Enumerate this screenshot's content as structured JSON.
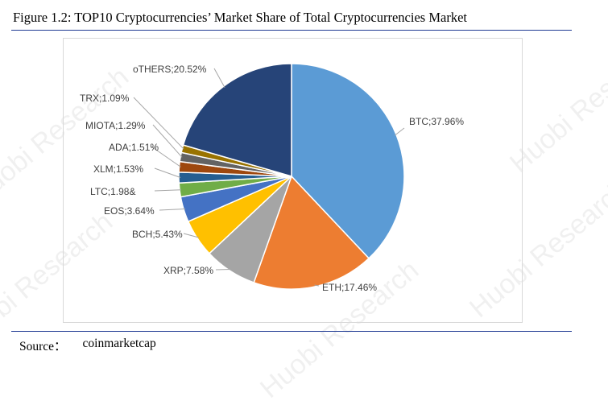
{
  "figure": {
    "title": "Figure 1.2: TOP10 Cryptocurrencies’ Market Share of Total Cryptocurrencies Market"
  },
  "watermark": {
    "text": "Huobi Research"
  },
  "source": {
    "label": "Source：",
    "value": "coinmarketcap"
  },
  "chart_data": {
    "type": "pie",
    "title": "",
    "start_angle_deg": 0,
    "direction": "clockwise",
    "slices": [
      {
        "name": "BTC",
        "value": 37.96,
        "label": "BTC;37.96%",
        "color": "#5b9bd5"
      },
      {
        "name": "ETH",
        "value": 17.46,
        "label": "ETH;17.46%",
        "color": "#ed7d31"
      },
      {
        "name": "XRP",
        "value": 7.58,
        "label": "XRP;7.58%",
        "color": "#a5a5a5"
      },
      {
        "name": "BCH",
        "value": 5.43,
        "label": "BCH;5.43%",
        "color": "#ffc000"
      },
      {
        "name": "EOS",
        "value": 3.64,
        "label": "EOS;3.64%",
        "color": "#4472c4"
      },
      {
        "name": "LTC",
        "value": 1.98,
        "label": "LTC;1.98&",
        "color": "#70ad47"
      },
      {
        "name": "XLM",
        "value": 1.53,
        "label": "XLM;1.53%",
        "color": "#255e91"
      },
      {
        "name": "ADA",
        "value": 1.51,
        "label": "ADA;1.51%",
        "color": "#9e480e"
      },
      {
        "name": "MIOTA",
        "value": 1.29,
        "label": "MIOTA;1.29%",
        "color": "#636363"
      },
      {
        "name": "TRX",
        "value": 1.09,
        "label": "TRX;1.09%",
        "color": "#997300"
      },
      {
        "name": "oTHERS",
        "value": 20.52,
        "label": "oTHERS;20.52%",
        "color": "#264478"
      }
    ]
  }
}
